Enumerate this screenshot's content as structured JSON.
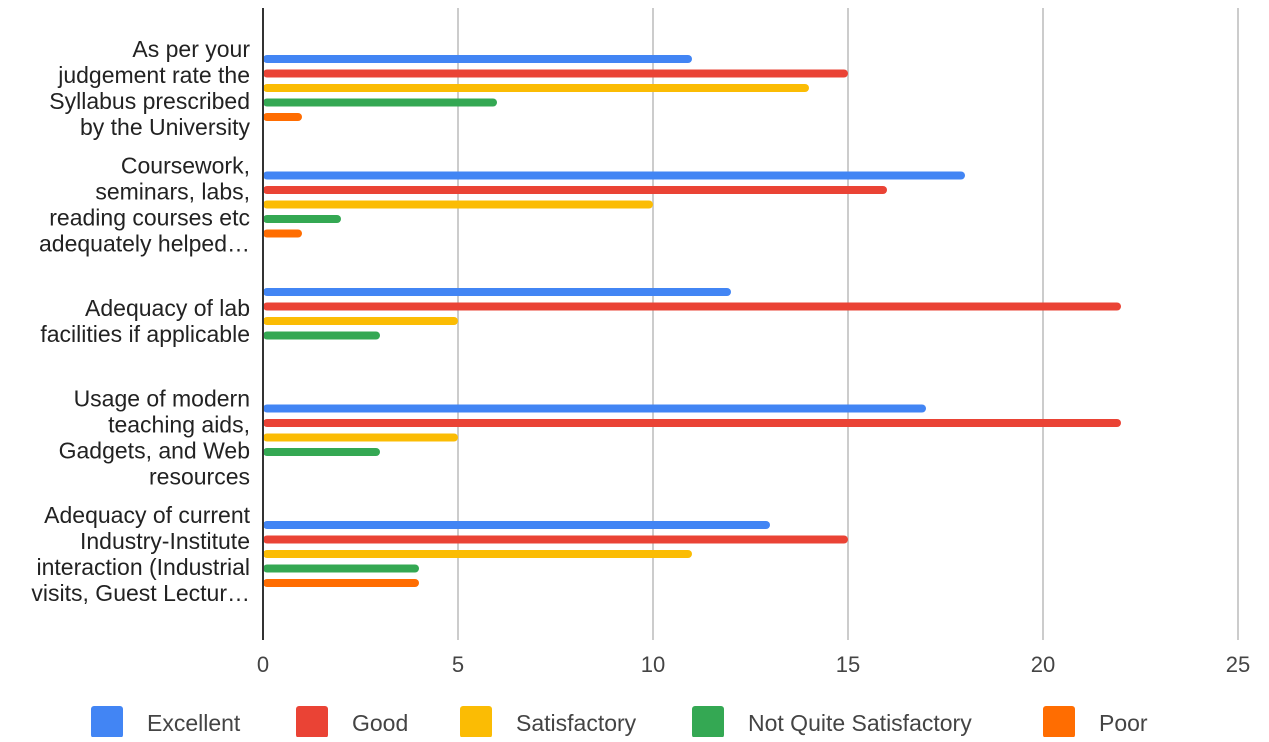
{
  "chart_data": {
    "type": "bar",
    "orientation": "horizontal",
    "title": "",
    "xlabel": "",
    "ylabel": "",
    "xlim": [
      0,
      25
    ],
    "x_ticks": [
      0,
      5,
      10,
      15,
      20,
      25
    ],
    "x_tick_labels": [
      "0",
      "5",
      "10",
      "15",
      "20",
      "25"
    ],
    "grid": true,
    "legend_position": "bottom",
    "categories": [
      [
        "As per your",
        "judgement rate the",
        "Syllabus prescribed",
        "by the University"
      ],
      [
        "Coursework,",
        "seminars, labs,",
        "reading courses etc",
        "adequately helped…"
      ],
      [
        "Adequacy of lab",
        "facilities if applicable"
      ],
      [
        "Usage of modern",
        "teaching aids,",
        "Gadgets, and Web",
        "resources"
      ],
      [
        "Adequacy of current",
        "Industry-Institute",
        "interaction (Industrial",
        "visits, Guest Lectur…"
      ]
    ],
    "series": [
      {
        "name": "Excellent",
        "color": "#4285f4",
        "values": [
          11,
          18,
          12,
          17,
          13
        ]
      },
      {
        "name": "Good",
        "color": "#ea4335",
        "values": [
          15,
          16,
          22,
          22,
          15
        ]
      },
      {
        "name": "Satisfactory",
        "color": "#fbbc04",
        "values": [
          14,
          10,
          5,
          5,
          11
        ]
      },
      {
        "name": "Not Quite Satisfactory",
        "color": "#34a853",
        "values": [
          6,
          2,
          3,
          3,
          4
        ]
      },
      {
        "name": "Poor",
        "color": "#ff6d01",
        "values": [
          1,
          1,
          0,
          0,
          4
        ]
      }
    ]
  }
}
